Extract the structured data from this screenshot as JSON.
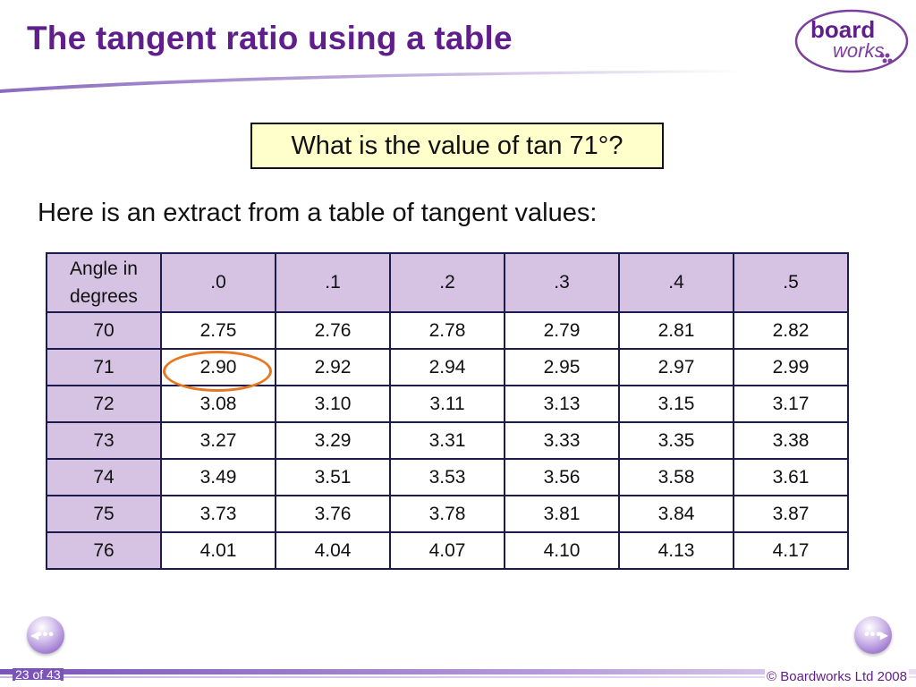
{
  "slide": {
    "title": "The tangent ratio using a table",
    "question": "What is the value of tan 71°?",
    "intro": "Here is an extract from a table of tangent values:"
  },
  "logo": {
    "word1": "board",
    "word2": "works"
  },
  "table": {
    "corner_label_line1": "Angle in",
    "corner_label_line2": "degrees",
    "columns": [
      ".0",
      ".1",
      ".2",
      ".3",
      ".4",
      ".5"
    ],
    "rows": [
      {
        "angle": "70",
        "values": [
          "2.75",
          "2.76",
          "2.78",
          "2.79",
          "2.81",
          "2.82"
        ]
      },
      {
        "angle": "71",
        "values": [
          "2.90",
          "2.92",
          "2.94",
          "2.95",
          "2.97",
          "2.99"
        ]
      },
      {
        "angle": "72",
        "values": [
          "3.08",
          "3.10",
          "3.11",
          "3.13",
          "3.15",
          "3.17"
        ]
      },
      {
        "angle": "73",
        "values": [
          "3.27",
          "3.29",
          "3.31",
          "3.33",
          "3.35",
          "3.38"
        ]
      },
      {
        "angle": "74",
        "values": [
          "3.49",
          "3.51",
          "3.53",
          "3.56",
          "3.58",
          "3.61"
        ]
      },
      {
        "angle": "75",
        "values": [
          "3.73",
          "3.76",
          "3.78",
          "3.81",
          "3.84",
          "3.87"
        ]
      },
      {
        "angle": "76",
        "values": [
          "4.01",
          "4.04",
          "4.07",
          "4.10",
          "4.13",
          "4.17"
        ]
      }
    ],
    "highlighted_cell": {
      "row": "71",
      "column": ".0"
    }
  },
  "navigation": {
    "prev_glyph": "◀",
    "next_glyph": "▶",
    "dots": "•••"
  },
  "footer": {
    "page_counter": "23 of 43",
    "copyright": "© Boardworks Ltd 2008"
  },
  "colors": {
    "title": "#5f1e8c",
    "header_fill": "#d6c3e3",
    "question_fill": "#ffffcc",
    "highlight_circle": "#e87722",
    "accent": "#7c54b8"
  }
}
